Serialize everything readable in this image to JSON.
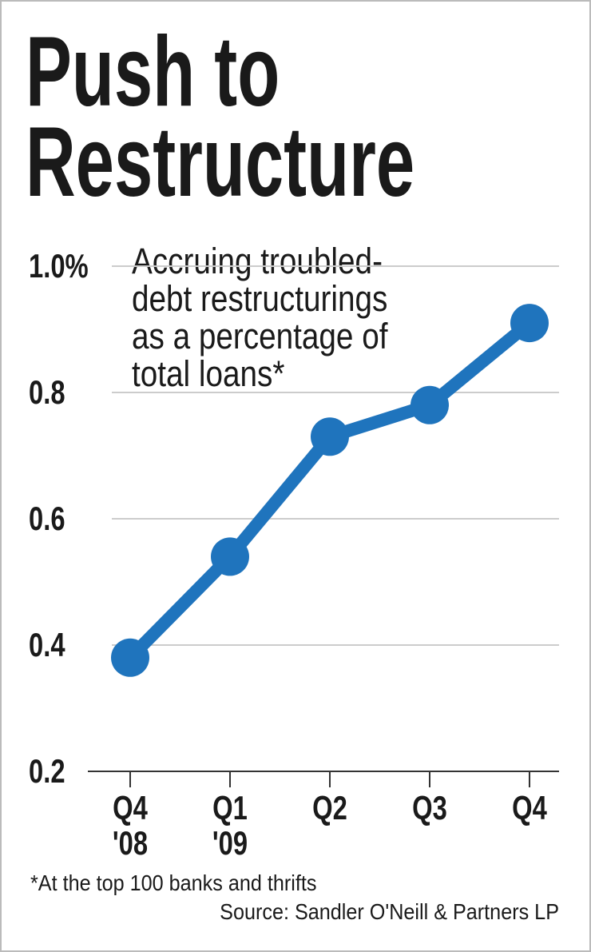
{
  "chart_data": {
    "type": "line",
    "title": "Push to\nRestructure",
    "subtitle": "Accruing troubled-\ndebt restructurings\nas a percentage of\ntotal loans*",
    "footnote": "*At the top 100 banks and thrifts",
    "source": "Source: Sandler O'Neill & Partners LP",
    "categories": [
      "Q4\n'08",
      "Q1\n'09",
      "Q2",
      "Q3",
      "Q4"
    ],
    "values": [
      0.38,
      0.54,
      0.73,
      0.78,
      0.91
    ],
    "color": "#1f74bd",
    "ylim": [
      0.2,
      1.0
    ],
    "yticks": [
      0.2,
      0.4,
      0.6,
      0.8,
      {
        "value": 1.0,
        "label": "1.0%"
      }
    ],
    "grid": true
  }
}
